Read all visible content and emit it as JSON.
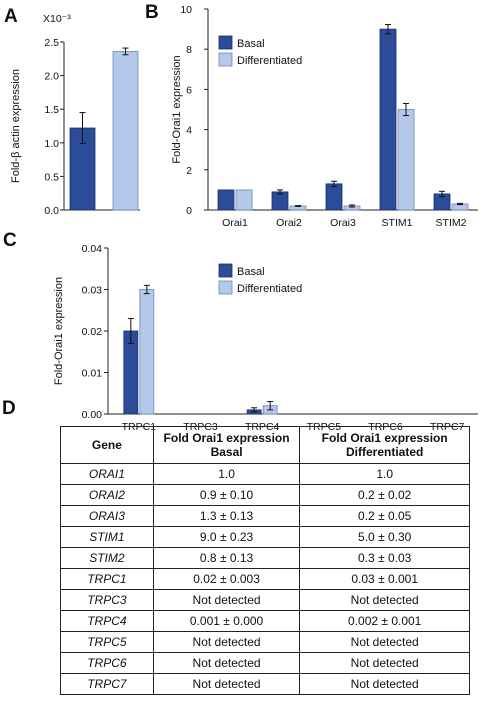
{
  "panels": {
    "a": "A",
    "b": "B",
    "c": "C",
    "d": "D"
  },
  "colors": {
    "basal": "#2b4c99",
    "differentiated": "#b4c8ea"
  },
  "chart_data": [
    {
      "type": "bar",
      "panel": "A",
      "categories": [
        ""
      ],
      "series": [
        {
          "name": "Basal",
          "values": [
            1.22
          ],
          "errors": [
            0.23
          ]
        },
        {
          "name": "Differentiated",
          "values": [
            2.36
          ],
          "errors": [
            0.05
          ]
        }
      ],
      "ylabel": "Fold-β actin expression",
      "yscale_label": "X10⁻³",
      "ylim": [
        0,
        2.5
      ],
      "yticks": [
        "0.0",
        "0.5",
        "1.0",
        "1.5",
        "2.0",
        "2.5"
      ],
      "legend": "none"
    },
    {
      "type": "bar",
      "panel": "B",
      "categories": [
        "Orai1",
        "Orai2",
        "Orai3",
        "STIM1",
        "STIM2"
      ],
      "series": [
        {
          "name": "Basal",
          "values": [
            1.0,
            0.9,
            1.3,
            9.0,
            0.8
          ],
          "errors": [
            0,
            0.1,
            0.13,
            0.23,
            0.13
          ]
        },
        {
          "name": "Differentiated",
          "values": [
            1.0,
            0.2,
            0.2,
            5.0,
            0.3
          ],
          "errors": [
            0,
            0.02,
            0.05,
            0.3,
            0.03
          ]
        }
      ],
      "ylabel": "Fold-Orai1 expression",
      "ylim": [
        0,
        10
      ],
      "yticks": [
        "0",
        "2",
        "4",
        "6",
        "8",
        "10"
      ],
      "legend": "top-left"
    },
    {
      "type": "bar",
      "panel": "C",
      "categories": [
        "TRPC1",
        "TRPC3",
        "TRPC4",
        "TRPC5",
        "TRPC6",
        "TRPC7"
      ],
      "series": [
        {
          "name": "Basal",
          "values": [
            0.02,
            0,
            0.001,
            0,
            0,
            0
          ],
          "errors": [
            0.003,
            0,
            0.0005,
            0,
            0,
            0
          ]
        },
        {
          "name": "Differentiated",
          "values": [
            0.03,
            0,
            0.002,
            0,
            0,
            0
          ],
          "errors": [
            0.001,
            0,
            0.001,
            0,
            0,
            0
          ]
        }
      ],
      "ylabel": "Fold-Orai1 expression",
      "ylim": [
        0,
        0.04
      ],
      "yticks": [
        "0.00",
        "0.01",
        "0.02",
        "0.03",
        "0.04"
      ],
      "legend": "top-center"
    }
  ],
  "table": {
    "headers": [
      "Gene",
      "Fold Orai1 expression\nBasal",
      "Fold Orai1 expression\nDifferentiated"
    ],
    "rows": [
      [
        "ORAI1",
        "1.0",
        "1.0"
      ],
      [
        "ORAI2",
        "0.9 ± 0.10",
        "0.2 ± 0.02"
      ],
      [
        "ORAI3",
        "1.3 ± 0.13",
        "0.2 ± 0.05"
      ],
      [
        "STIM1",
        "9.0 ± 0.23",
        "5.0 ± 0.30"
      ],
      [
        "STIM2",
        "0.8 ± 0.13",
        "0.3 ± 0.03"
      ],
      [
        "TRPC1",
        "0.02 ± 0.003",
        "0.03 ± 0.001"
      ],
      [
        "TRPC3",
        "Not detected",
        "Not detected"
      ],
      [
        "TRPC4",
        "0.001 ± 0.000",
        "0.002 ± 0.001"
      ],
      [
        "TRPC5",
        "Not detected",
        "Not detected"
      ],
      [
        "TRPC6",
        "Not detected",
        "Not detected"
      ],
      [
        "TRPC7",
        "Not detected",
        "Not detected"
      ]
    ]
  }
}
